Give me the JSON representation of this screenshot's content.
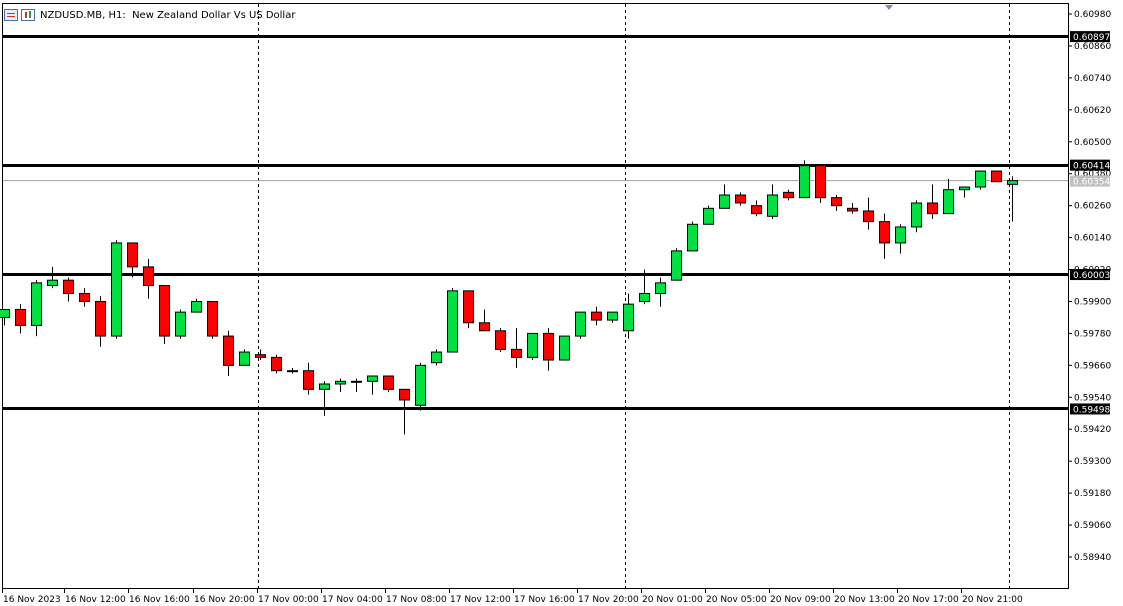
{
  "header": {
    "symbol": "NZDUSD.MB",
    "timeframe": "H1",
    "description": "New Zealand Dollar Vs US Dollar",
    "icon1": "grid-icon",
    "icon2": "candlestick-icon"
  },
  "colors": {
    "bull": "#00e040",
    "bear": "#ff0000",
    "outline": "#000000",
    "background": "#ffffff",
    "hline": "#000000",
    "bid_line": "#a0a0a0"
  },
  "chart_data": {
    "type": "candlestick",
    "ylim": [
      0.5882,
      0.6103
    ],
    "y_ticks": [
      "0.60980",
      "0.60860",
      "0.60740",
      "0.60620",
      "0.60500",
      "0.60380",
      "0.60260",
      "0.60140",
      "0.60020",
      "0.59900",
      "0.59780",
      "0.59660",
      "0.59540",
      "0.59420",
      "0.59300",
      "0.59180",
      "0.59060",
      "0.58940"
    ],
    "x_labels": [
      "16 Nov 2023",
      "16 Nov 12:00",
      "16 Nov 16:00",
      "16 Nov 20:00",
      "17 Nov 00:00",
      "17 Nov 04:00",
      "17 Nov 08:00",
      "17 Nov 12:00",
      "17 Nov 16:00",
      "17 Nov 20:00",
      "20 Nov 01:00",
      "20 Nov 05:00",
      "20 Nov 09:00",
      "20 Nov 13:00",
      "20 Nov 17:00",
      "20 Nov 21:00"
    ],
    "horizontal_levels": [
      {
        "price": 0.60897,
        "label": "0.60897"
      },
      {
        "price": 0.60414,
        "label": "0.60414"
      },
      {
        "price": 0.60003,
        "label": "0.60003"
      },
      {
        "price": 0.59498,
        "label": "0.59498"
      }
    ],
    "current_price": {
      "price": 0.60354,
      "label": "0.60354"
    },
    "candles": [
      {
        "o": 0.5984,
        "h": 0.5987,
        "l": 0.5981,
        "c": 0.5987
      },
      {
        "o": 0.5987,
        "h": 0.5989,
        "l": 0.5978,
        "c": 0.5981
      },
      {
        "o": 0.5981,
        "h": 0.5998,
        "l": 0.5977,
        "c": 0.5997
      },
      {
        "o": 0.5996,
        "h": 0.6003,
        "l": 0.5995,
        "c": 0.5998
      },
      {
        "o": 0.5998,
        "h": 0.5999,
        "l": 0.599,
        "c": 0.5993
      },
      {
        "o": 0.5993,
        "h": 0.5995,
        "l": 0.5988,
        "c": 0.599
      },
      {
        "o": 0.599,
        "h": 0.5992,
        "l": 0.5973,
        "c": 0.5977
      },
      {
        "o": 0.5977,
        "h": 0.6013,
        "l": 0.5976,
        "c": 0.6012
      },
      {
        "o": 0.6012,
        "h": 0.6012,
        "l": 0.5999,
        "c": 0.6003
      },
      {
        "o": 0.6003,
        "h": 0.6006,
        "l": 0.5991,
        "c": 0.5996
      },
      {
        "o": 0.5996,
        "h": 0.5996,
        "l": 0.5974,
        "c": 0.5977
      },
      {
        "o": 0.5977,
        "h": 0.5987,
        "l": 0.5976,
        "c": 0.5986
      },
      {
        "o": 0.5986,
        "h": 0.5991,
        "l": 0.5986,
        "c": 0.599
      },
      {
        "o": 0.599,
        "h": 0.599,
        "l": 0.5976,
        "c": 0.5977
      },
      {
        "o": 0.5977,
        "h": 0.5979,
        "l": 0.5962,
        "c": 0.5966
      },
      {
        "o": 0.5966,
        "h": 0.5972,
        "l": 0.5966,
        "c": 0.5971
      },
      {
        "o": 0.597,
        "h": 0.5972,
        "l": 0.5968,
        "c": 0.5969
      },
      {
        "o": 0.5969,
        "h": 0.597,
        "l": 0.5963,
        "c": 0.5964
      },
      {
        "o": 0.5964,
        "h": 0.5965,
        "l": 0.5963,
        "c": 0.5964
      },
      {
        "o": 0.5964,
        "h": 0.5967,
        "l": 0.5955,
        "c": 0.5957
      },
      {
        "o": 0.5957,
        "h": 0.596,
        "l": 0.5947,
        "c": 0.5959
      },
      {
        "o": 0.5959,
        "h": 0.5961,
        "l": 0.5956,
        "c": 0.596
      },
      {
        "o": 0.596,
        "h": 0.5961,
        "l": 0.5956,
        "c": 0.596
      },
      {
        "o": 0.596,
        "h": 0.5962,
        "l": 0.5955,
        "c": 0.5962
      },
      {
        "o": 0.5962,
        "h": 0.5962,
        "l": 0.5956,
        "c": 0.5957
      },
      {
        "o": 0.5957,
        "h": 0.5957,
        "l": 0.594,
        "c": 0.5953
      },
      {
        "o": 0.5951,
        "h": 0.5967,
        "l": 0.5949,
        "c": 0.5966
      },
      {
        "o": 0.5967,
        "h": 0.5972,
        "l": 0.5966,
        "c": 0.5971
      },
      {
        "o": 0.5971,
        "h": 0.5995,
        "l": 0.5971,
        "c": 0.5994
      },
      {
        "o": 0.5994,
        "h": 0.5994,
        "l": 0.598,
        "c": 0.5982
      },
      {
        "o": 0.5982,
        "h": 0.5987,
        "l": 0.5979,
        "c": 0.5979
      },
      {
        "o": 0.5979,
        "h": 0.598,
        "l": 0.5971,
        "c": 0.5972
      },
      {
        "o": 0.5972,
        "h": 0.598,
        "l": 0.5965,
        "c": 0.5969
      },
      {
        "o": 0.5969,
        "h": 0.5978,
        "l": 0.5968,
        "c": 0.5978
      },
      {
        "o": 0.5978,
        "h": 0.598,
        "l": 0.5964,
        "c": 0.5968
      },
      {
        "o": 0.5968,
        "h": 0.5977,
        "l": 0.5968,
        "c": 0.5977
      },
      {
        "o": 0.5977,
        "h": 0.5986,
        "l": 0.5976,
        "c": 0.5986
      },
      {
        "o": 0.5986,
        "h": 0.5988,
        "l": 0.5981,
        "c": 0.5983
      },
      {
        "o": 0.5983,
        "h": 0.5986,
        "l": 0.5982,
        "c": 0.5986
      },
      {
        "o": 0.5979,
        "h": 0.5993,
        "l": 0.5976,
        "c": 0.5989
      },
      {
        "o": 0.599,
        "h": 0.6002,
        "l": 0.5989,
        "c": 0.5993
      },
      {
        "o": 0.5993,
        "h": 0.5999,
        "l": 0.5988,
        "c": 0.5997
      },
      {
        "o": 0.5998,
        "h": 0.601,
        "l": 0.5998,
        "c": 0.6009
      },
      {
        "o": 0.6009,
        "h": 0.602,
        "l": 0.6009,
        "c": 0.6019
      },
      {
        "o": 0.6019,
        "h": 0.6026,
        "l": 0.6019,
        "c": 0.6025
      },
      {
        "o": 0.6025,
        "h": 0.6034,
        "l": 0.6025,
        "c": 0.603
      },
      {
        "o": 0.603,
        "h": 0.6031,
        "l": 0.6026,
        "c": 0.6027
      },
      {
        "o": 0.6026,
        "h": 0.6028,
        "l": 0.6022,
        "c": 0.6023
      },
      {
        "o": 0.6022,
        "h": 0.6034,
        "l": 0.6021,
        "c": 0.603
      },
      {
        "o": 0.6031,
        "h": 0.6032,
        "l": 0.6028,
        "c": 0.6029
      },
      {
        "o": 0.6029,
        "h": 0.6043,
        "l": 0.6029,
        "c": 0.6041
      },
      {
        "o": 0.6041,
        "h": 0.6041,
        "l": 0.6027,
        "c": 0.6029
      },
      {
        "o": 0.6029,
        "h": 0.603,
        "l": 0.6024,
        "c": 0.6026
      },
      {
        "o": 0.6025,
        "h": 0.6027,
        "l": 0.6023,
        "c": 0.6024
      },
      {
        "o": 0.6024,
        "h": 0.6029,
        "l": 0.6017,
        "c": 0.602
      },
      {
        "o": 0.602,
        "h": 0.6023,
        "l": 0.6006,
        "c": 0.6012
      },
      {
        "o": 0.6012,
        "h": 0.6019,
        "l": 0.6008,
        "c": 0.6018
      },
      {
        "o": 0.6018,
        "h": 0.6028,
        "l": 0.6016,
        "c": 0.6027
      },
      {
        "o": 0.6027,
        "h": 0.6034,
        "l": 0.6021,
        "c": 0.6023
      },
      {
        "o": 0.6023,
        "h": 0.6036,
        "l": 0.6023,
        "c": 0.6032
      },
      {
        "o": 0.6032,
        "h": 0.6033,
        "l": 0.6029,
        "c": 0.6033
      },
      {
        "o": 0.6033,
        "h": 0.6039,
        "l": 0.6032,
        "c": 0.6039
      },
      {
        "o": 0.6039,
        "h": 0.6039,
        "l": 0.6035,
        "c": 0.6035
      },
      {
        "o": 0.6034,
        "h": 0.6037,
        "l": 0.602,
        "c": 0.60354
      }
    ]
  }
}
